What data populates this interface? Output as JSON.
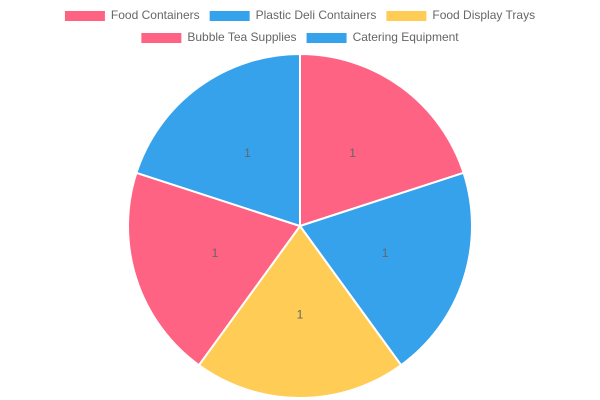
{
  "chart_data": {
    "type": "pie",
    "categories": [
      "Food Containers",
      "Plastic Deli Containers",
      "Food Display Trays",
      "Bubble Tea Supplies",
      "Catering Equipment"
    ],
    "values": [
      1,
      1,
      1,
      1,
      1
    ],
    "data_labels": [
      "1",
      "1",
      "1",
      "1",
      "1"
    ],
    "colors": [
      "#ff6384",
      "#36a2eb",
      "#ffcd56",
      "#ff6384",
      "#36a2eb"
    ],
    "legend_position": "top",
    "start_angle": "12 o'clock",
    "direction": "clockwise"
  }
}
